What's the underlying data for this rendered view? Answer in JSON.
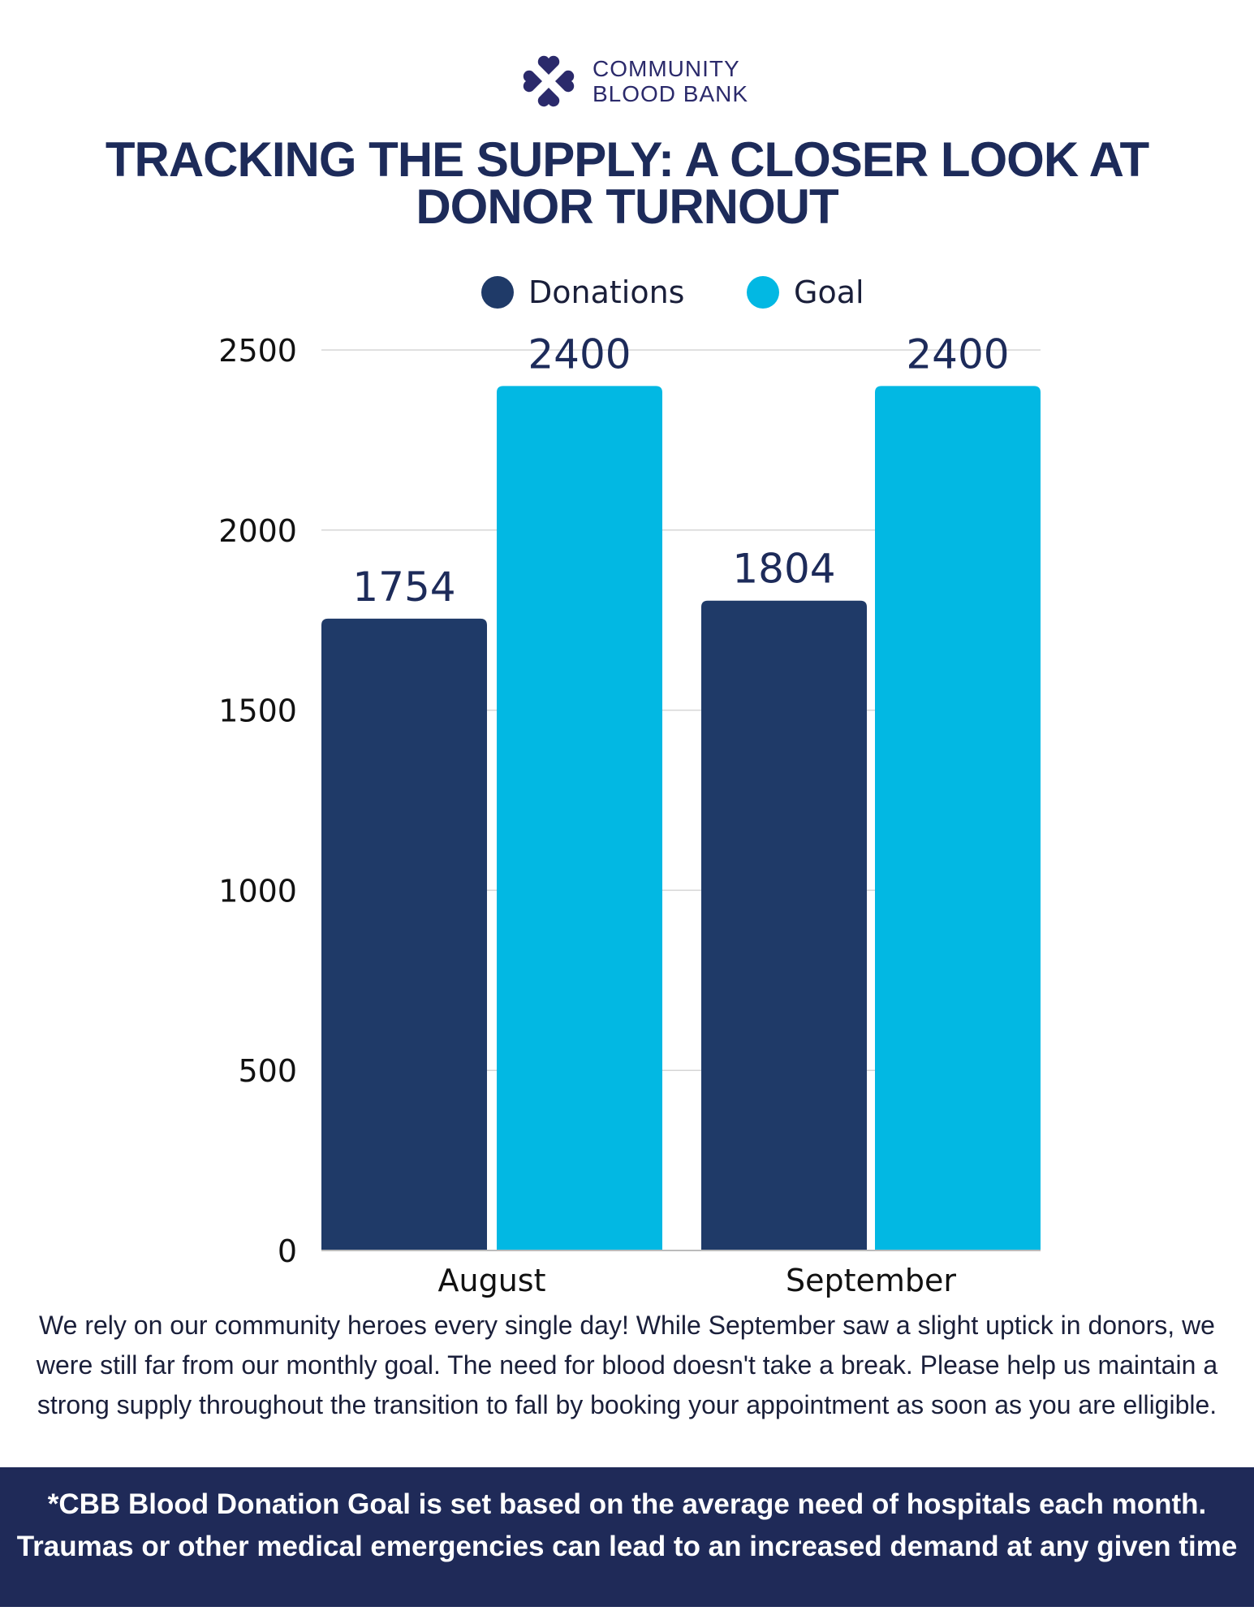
{
  "logo": {
    "line1": "COMMUNITY",
    "line2": "BLOOD BANK"
  },
  "title": "TRACKING THE SUPPLY: A CLOSER LOOK AT DONOR TURNOUT",
  "chart_data": {
    "type": "bar",
    "categories": [
      "August",
      "September"
    ],
    "series": [
      {
        "name": "Donations",
        "values": [
          1754,
          1804
        ],
        "color": "#1f3a68"
      },
      {
        "name": "Goal",
        "values": [
          2400,
          2400
        ],
        "color": "#02b8e3"
      }
    ],
    "ylim": [
      0,
      2500
    ],
    "yticks": [
      "0",
      "500",
      "1000",
      "1500",
      "2000",
      "2500"
    ],
    "legend": "top",
    "grid": true,
    "data_labels": true
  },
  "description": "We rely on our community heroes every single day! While September saw a slight uptick in donors, we were still far from our monthly goal. The need for blood doesn't take a break. Please help us maintain a strong supply throughout the transition to fall by booking your appointment as soon as you are elligible.",
  "footer": "*CBB Blood Donation Goal is set based on the average need of hospitals each month. Traumas or other medical emergencies can lead to an increased demand at any given time"
}
